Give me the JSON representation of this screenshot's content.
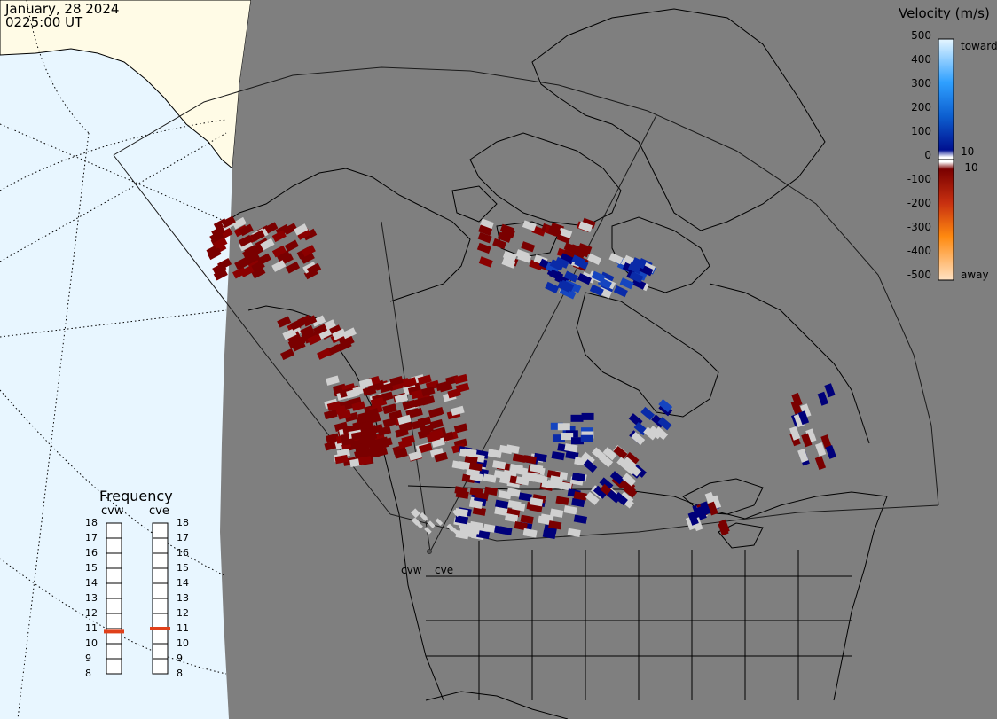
{
  "header": {
    "date": "January, 28 2024",
    "time": "0225:00 UT"
  },
  "velocity_scale": {
    "title": "Velocity (m/s)",
    "ticks": [
      "500",
      "400",
      "300",
      "200",
      "100",
      "0",
      "-100",
      "-200",
      "-300",
      "-400",
      "-500"
    ],
    "side_labels": {
      "toward": "toward",
      "away": "away",
      "pos10": "10",
      "neg10": "-10"
    },
    "colors": {
      "toward_top": "#dff2ff",
      "toward_mid": "#1e90ff",
      "toward_low": "#0a2ba8",
      "toward_min": "#00007a",
      "away_min": "#7a0000",
      "away_mid": "#d84a08",
      "away_high": "#ff9a20",
      "away_top": "#ffe0c0",
      "ground_scatter": "#d0d0d0"
    }
  },
  "map_colors": {
    "night": "#7f7f7f",
    "ocean_day": "#e8f6ff",
    "land_day": "#fffbe6",
    "coast": "#000000"
  },
  "frequency_panel": {
    "title": "Frequency",
    "radars": [
      {
        "name": "cvw",
        "freq_mhz": 10.8
      },
      {
        "name": "cve",
        "freq_mhz": 11.0
      }
    ],
    "ticks": [
      "18",
      "17",
      "16",
      "15",
      "14",
      "13",
      "12",
      "11",
      "10",
      "9",
      "8"
    ],
    "marker_color": "#e0401a"
  },
  "radar_sites": {
    "cvw": "cvw",
    "cve": "cve"
  }
}
